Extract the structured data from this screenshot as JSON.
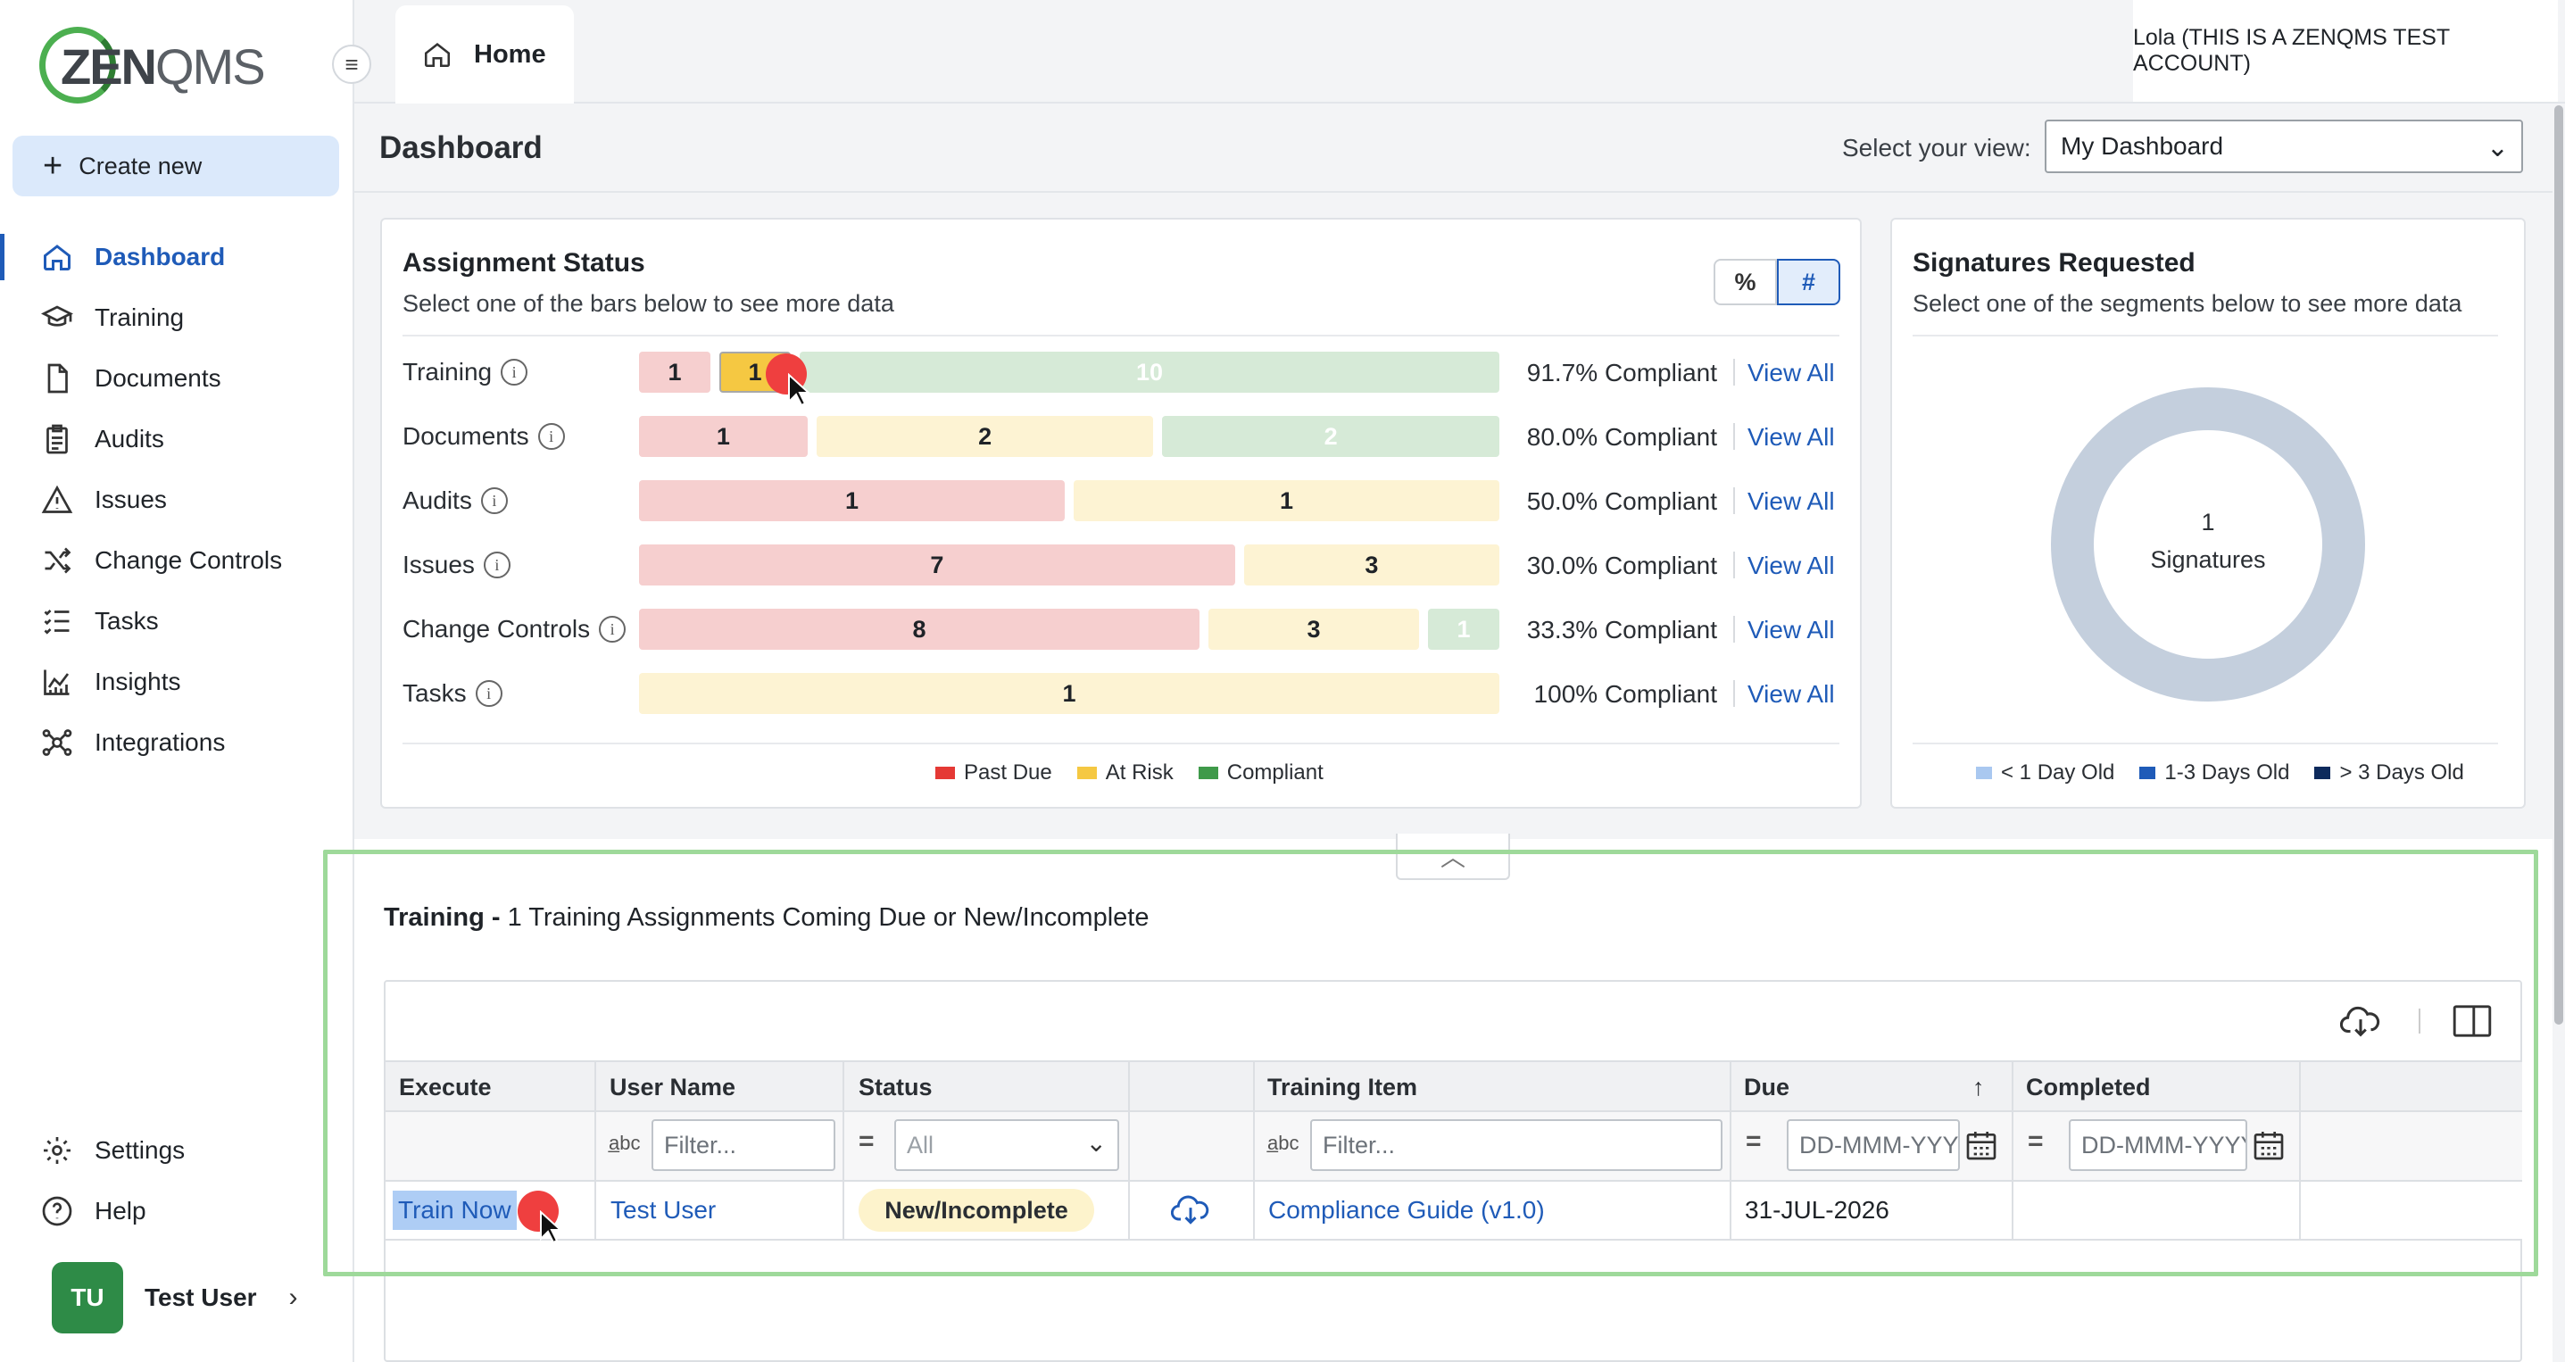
{
  "app": {
    "logo_text": "ZENQMS",
    "account_label": "Lola (THIS IS A ZENQMS TEST ACCOUNT)",
    "home_tab": "Home"
  },
  "sidebar": {
    "create_new": "Create new",
    "items": [
      {
        "label": "Dashboard",
        "icon": "home-icon",
        "active": true
      },
      {
        "label": "Training",
        "icon": "graduation-cap-icon"
      },
      {
        "label": "Documents",
        "icon": "document-icon"
      },
      {
        "label": "Audits",
        "icon": "clipboard-icon"
      },
      {
        "label": "Issues",
        "icon": "warning-icon"
      },
      {
        "label": "Change Controls",
        "icon": "shuffle-icon"
      },
      {
        "label": "Tasks",
        "icon": "checklist-icon"
      },
      {
        "label": "Insights",
        "icon": "chart-icon"
      },
      {
        "label": "Integrations",
        "icon": "network-icon"
      }
    ],
    "bottom": [
      {
        "label": "Settings",
        "icon": "gear-icon"
      },
      {
        "label": "Help",
        "icon": "help-icon"
      }
    ],
    "user": {
      "initials": "TU",
      "name": "Test User"
    }
  },
  "dashboard": {
    "title": "Dashboard",
    "view_label": "Select your view:",
    "view_value": "My Dashboard"
  },
  "assignment_status": {
    "title": "Assignment Status",
    "subtitle": "Select one of the bars below to see more data",
    "toggle_pct": "%",
    "toggle_num": "#",
    "view_all": "View All",
    "rows": [
      {
        "label": "Training",
        "past_due": 1,
        "at_risk": 1,
        "compliant": 10,
        "compliance": "91.7% Compliant"
      },
      {
        "label": "Documents",
        "past_due": 1,
        "at_risk": 2,
        "compliant": 2,
        "compliance": "80.0% Compliant"
      },
      {
        "label": "Audits",
        "past_due": 1,
        "at_risk": 1,
        "compliant": 0,
        "compliance": "50.0% Compliant"
      },
      {
        "label": "Issues",
        "past_due": 7,
        "at_risk": 3,
        "compliant": 0,
        "compliance": "30.0% Compliant"
      },
      {
        "label": "Change Controls",
        "past_due": 8,
        "at_risk": 3,
        "compliant": 1,
        "compliance": "33.3% Compliant"
      },
      {
        "label": "Tasks",
        "past_due": 0,
        "at_risk": 1,
        "compliant": 0,
        "compliance": "100% Compliant"
      }
    ],
    "legend": [
      "Past Due",
      "At Risk",
      "Compliant"
    ],
    "colors": {
      "past_due": "#e53935",
      "at_risk": "#f5c842",
      "compliant": "#3f9a4a"
    }
  },
  "signatures": {
    "title": "Signatures Requested",
    "subtitle": "Select one of the segments below to see more data",
    "count": "1",
    "count_label": "Signatures",
    "legend": [
      "< 1 Day Old",
      "1-3 Days Old",
      "> 3 Days Old"
    ],
    "colors": [
      "#a9c8f0",
      "#1f5bb8",
      "#0d2a5c"
    ]
  },
  "training_panel": {
    "title_bold": "Training -",
    "title_rest": "1 Training Assignments Coming Due or New/Incomplete",
    "columns": [
      "Execute",
      "User Name",
      "Status",
      "",
      "Training Item",
      "Due",
      "Completed"
    ],
    "filters": {
      "user_name": "Filter...",
      "status": "All",
      "training_item": "Filter...",
      "due": "DD-MMM-YYYY",
      "completed": "DD-MMM-YYYY"
    },
    "row": {
      "execute": "Train Now",
      "user_name": "Test User",
      "status": "New/Incomplete",
      "training_item": "Compliance Guide (v1.0)",
      "due": "31-JUL-2026",
      "completed": ""
    }
  }
}
